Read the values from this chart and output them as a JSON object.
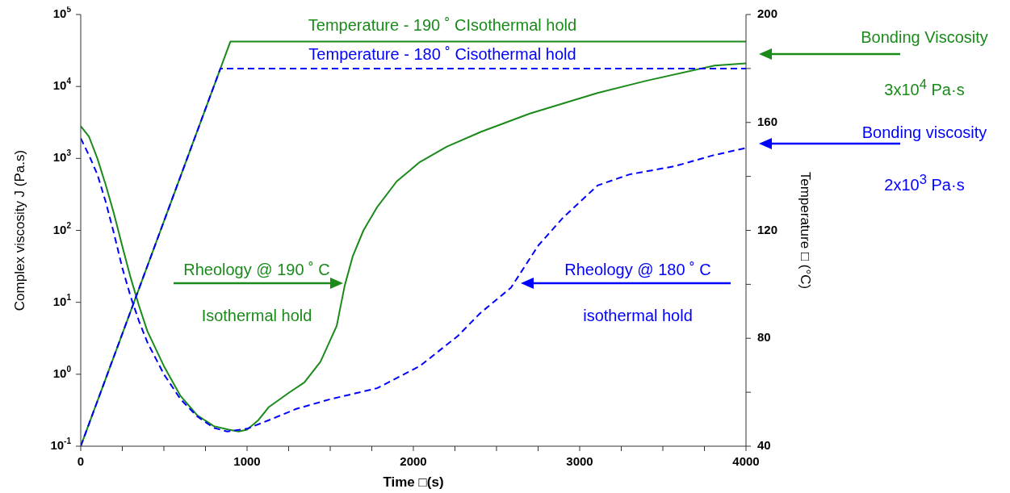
{
  "chart_data": {
    "type": "line",
    "xlabel": "Time □(s)",
    "ylabel": "Complex viscosity J  (Pa.s)",
    "y2label": "Temperature □ (°C)",
    "xlim": [
      0,
      4000
    ],
    "xticks": [
      0,
      {
        "value": 250,
        "label": null
      },
      {
        "value": 500,
        "label": null
      },
      {
        "value": 750,
        "label": null
      },
      1000,
      {
        "value": 1250,
        "label": null
      },
      {
        "value": 1500,
        "label": null
      },
      {
        "value": 1750,
        "label": null
      },
      2000,
      {
        "value": 2250,
        "label": null
      },
      {
        "value": 2500,
        "label": null
      },
      {
        "value": 2750,
        "label": null
      },
      3000,
      {
        "value": 3250,
        "label": null
      },
      {
        "value": 3500,
        "label": null
      },
      {
        "value": 3750,
        "label": null
      },
      4000
    ],
    "ylim": [
      0.1,
      100000
    ],
    "yticks": [
      {
        "value": 0.1,
        "label": "10$^{-1}$"
      },
      {
        "value": 1,
        "label": "10$^{0}$"
      },
      {
        "value": 10,
        "label": "10$^{1}$"
      },
      {
        "value": 100,
        "label": "10$^{2}$"
      },
      {
        "value": 1000,
        "label": "10$^{3}$"
      },
      {
        "value": 10000,
        "label": "10$^{4}$"
      },
      {
        "value": 100000,
        "label": "10$^{5}$"
      }
    ],
    "y2lim": [
      40,
      200
    ],
    "y2ticks": [
      40,
      {
        "value": 60,
        "label": null
      },
      80,
      {
        "value": 100,
        "label": null
      },
      120,
      {
        "value": 140,
        "label": null
      },
      160,
      {
        "value": 180,
        "label": null
      },
      200
    ],
    "log": "y",
    "marker": "none",
    "series": [
      {
        "color": "#1a8a1a",
        "line_style": "solid",
        "x": [
          0,
          50,
          100,
          150,
          200,
          250,
          300,
          350,
          400,
          500,
          600,
          700,
          800,
          890,
          950,
          1000,
          1068,
          1131,
          1250,
          1345,
          1442,
          1539,
          1587,
          1636,
          1700,
          1782,
          1900,
          2039,
          2200,
          2408,
          2700,
          3107,
          3400,
          3811,
          4000
        ],
        "values": [
          2800,
          2000,
          1000,
          430,
          170,
          60,
          22,
          9,
          4,
          1.3,
          0.5,
          0.27,
          0.19,
          0.17,
          0.16,
          0.17,
          0.23,
          0.35,
          0.55,
          0.77,
          1.5,
          4.7,
          17,
          44,
          100,
          210,
          480,
          890,
          1450,
          2350,
          4200,
          8100,
          12000,
          19500,
          21000
        ]
      },
      {
        "color": "#0000ff",
        "line_style": "dashed",
        "x": [
          0,
          50,
          100,
          150,
          200,
          250,
          300,
          350,
          400,
          500,
          600,
          700,
          800,
          880,
          1000,
          1131,
          1296,
          1500,
          1782,
          2039,
          2267,
          2400,
          2587,
          2752,
          2900,
          3107,
          3300,
          3573,
          3800,
          4000
        ],
        "values": [
          1900,
          1100,
          600,
          250,
          90,
          30,
          12,
          5.5,
          2.8,
          1.0,
          0.45,
          0.26,
          0.18,
          0.16,
          0.175,
          0.23,
          0.33,
          0.45,
          0.64,
          1.3,
          3.4,
          7,
          16,
          62,
          150,
          420,
          600,
          780,
          1100,
          1400
        ]
      },
      {
        "color": "#1a8a1a",
        "line_style": "solid",
        "axis": "y2",
        "x": [
          0,
          900,
          4000
        ],
        "values": [
          40,
          190,
          190
        ]
      },
      {
        "color": "#0000ff",
        "line_style": "dashed",
        "axis": "y2",
        "x": [
          0,
          840,
          4000
        ],
        "values": [
          40,
          180,
          180
        ]
      }
    ],
    "annotations": [
      "Temperature - 190 ˚ CIsothermal hold",
      "Temperature - 180 ˚ Cisothermal hold",
      "Rheology @ 190 ˚ C",
      "Isothermal hold",
      "Rheology @ 180 ˚ C",
      "isothermal hold",
      "Bonding Viscosity",
      "3x10$^{4}$ Pa·s",
      "Bonding viscosity",
      "2x10$^{3}$ Pa·s"
    ]
  }
}
